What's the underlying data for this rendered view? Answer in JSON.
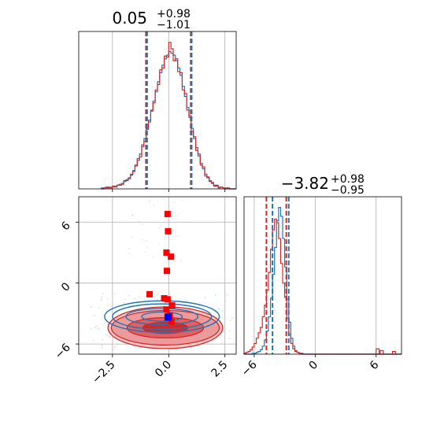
{
  "chart_data": [
    {
      "type": "histogram",
      "panel": "top-left",
      "title": {
        "value": "0.05",
        "upper": "+0.98",
        "lower": "−1.01"
      },
      "xlim": [
        -4.0,
        3.0
      ],
      "grid": true,
      "bins": [
        -3.0,
        -2.9,
        -2.8,
        -2.7,
        -2.6,
        -2.5,
        -2.4,
        -2.3,
        -2.2,
        -2.1,
        -2.0,
        -1.9,
        -1.8,
        -1.7,
        -1.6,
        -1.5,
        -1.4,
        -1.3,
        -1.2,
        -1.1,
        -1.0,
        -0.9,
        -0.8,
        -0.7,
        -0.6,
        -0.5,
        -0.4,
        -0.3,
        -0.2,
        -0.1,
        0.0,
        0.1,
        0.2,
        0.3,
        0.4,
        0.5,
        0.6,
        0.7,
        0.8,
        0.9,
        1.0,
        1.1,
        1.2,
        1.3,
        1.4,
        1.5,
        1.6,
        1.7,
        1.8,
        1.9,
        2.0,
        2.1,
        2.2,
        2.3,
        2.4,
        2.5,
        2.6,
        2.7,
        2.8,
        2.9
      ],
      "series": [
        {
          "color": "#1f77b4",
          "values": [
            1,
            1,
            1,
            2,
            2,
            2,
            3,
            4,
            4,
            6,
            8,
            10,
            12,
            15,
            20,
            26,
            31,
            38,
            46,
            55,
            65,
            75,
            85,
            96,
            106,
            117,
            127,
            135,
            142,
            146,
            150,
            148,
            146,
            140,
            132,
            124,
            112,
            101,
            89,
            78,
            66,
            55,
            45,
            36,
            28,
            22,
            16,
            12,
            9,
            6,
            4,
            3,
            2,
            2,
            1,
            1,
            1,
            0,
            0,
            0
          ]
        },
        {
          "color": "#d62728",
          "values": [
            0,
            1,
            2,
            1,
            1,
            3,
            2,
            4,
            5,
            5,
            9,
            9,
            11,
            16,
            19,
            25,
            33,
            35,
            48,
            52,
            66,
            73,
            86,
            94,
            108,
            114,
            130,
            132,
            145,
            144,
            160,
            153,
            140,
            142,
            128,
            127,
            108,
            104,
            86,
            80,
            63,
            57,
            42,
            38,
            26,
            24,
            14,
            13,
            8,
            7,
            3,
            4,
            1,
            2,
            1,
            0,
            1,
            0,
            0,
            0
          ]
        }
      ],
      "quantile_lines": [
        {
          "x": -1.01,
          "color": "#d62728"
        },
        {
          "x": 0.98,
          "color": "#d62728"
        },
        {
          "x": -0.96,
          "color": "#1f77b4"
        },
        {
          "x": 1.02,
          "color": "#1f77b4"
        }
      ]
    },
    {
      "type": "contour",
      "panel": "bottom-left",
      "xlim": [
        -4.0,
        3.0
      ],
      "ylim": [
        -7.0,
        8.5
      ],
      "xticks": [
        "−2.5",
        "0.0",
        "2.5"
      ],
      "yticks": [
        "−6",
        "0",
        "6"
      ],
      "grid": true,
      "blue_contours": {
        "color": "#1f77b4",
        "center": [
          -0.3,
          -3.3
        ],
        "levels": [
          {
            "rx": 0.9,
            "ry": 0.45
          },
          {
            "rx": 1.6,
            "ry": 0.8
          },
          {
            "rx": 2.2,
            "ry": 1.25
          },
          {
            "rx": 2.55,
            "ry": 1.55
          }
        ]
      },
      "red_contours": {
        "color": "#d62728",
        "center": [
          -0.15,
          -4.4
        ],
        "levels": [
          {
            "rx": 1.0,
            "ry": 0.55
          },
          {
            "rx": 1.7,
            "ry": 1.0
          },
          {
            "rx": 2.4,
            "ry": 1.7
          },
          {
            "rx": 2.55,
            "ry": 2.05
          }
        ]
      },
      "red_points": [
        [
          -0.05,
          6.8
        ],
        [
          -0.03,
          5.1
        ],
        [
          -0.1,
          3.0
        ],
        [
          0.1,
          2.6
        ],
        [
          -0.08,
          1.2
        ],
        [
          -0.85,
          -1.1
        ],
        [
          -0.2,
          -1.5
        ],
        [
          -0.05,
          -1.6
        ],
        [
          0.15,
          -2.2
        ],
        [
          -0.1,
          -2.6
        ],
        [
          0.05,
          -3.2
        ],
        [
          0.12,
          -3.8
        ]
      ],
      "blue_point": [
        -0.03,
        -3.35
      ]
    },
    {
      "type": "histogram",
      "panel": "bottom-right",
      "title": {
        "value": "−3.82",
        "upper": "+0.98",
        "lower": "−0.95"
      },
      "xlim": [
        -7.0,
        8.5
      ],
      "xticks": [
        "−6",
        "0",
        "6"
      ],
      "grid": true,
      "bins": [
        -7.0,
        -6.8,
        -6.6,
        -6.4,
        -6.2,
        -6.0,
        -5.8,
        -5.6,
        -5.4,
        -5.2,
        -5.0,
        -4.8,
        -4.6,
        -4.4,
        -4.2,
        -4.0,
        -3.8,
        -3.6,
        -3.4,
        -3.2,
        -3.0,
        -2.8,
        -2.6,
        -2.4,
        -2.2,
        -2.0,
        -1.8,
        -1.6,
        -1.4,
        -1.2,
        -1.0,
        -0.8,
        -0.6
      ],
      "series": [
        {
          "color": "#1f77b4",
          "values": [
            0,
            0,
            0,
            0,
            1,
            1,
            2,
            3,
            5,
            9,
            16,
            26,
            42,
            63,
            90,
            120,
            150,
            165,
            155,
            130,
            98,
            62,
            36,
            18,
            9,
            4,
            2,
            1,
            1,
            0,
            0,
            0,
            0
          ]
        },
        {
          "color": "#d62728",
          "values": [
            1,
            2,
            3,
            5,
            8,
            12,
            18,
            24,
            30,
            42,
            55,
            72,
            92,
            118,
            140,
            152,
            148,
            130,
            102,
            80,
            64,
            40,
            22,
            12,
            6,
            3,
            2,
            1,
            0,
            0,
            0,
            0,
            0
          ]
        }
      ],
      "outlier_bins": [
        {
          "x": 6.0,
          "color": "#d62728",
          "value": 6
        },
        {
          "x": 6.4,
          "color": "#d62728",
          "value": 4
        },
        {
          "x": 7.6,
          "color": "#d62728",
          "value": 3
        }
      ],
      "quantile_lines": [
        {
          "x": -4.8,
          "color": "#d62728"
        },
        {
          "x": -2.84,
          "color": "#d62728"
        },
        {
          "x": -4.2,
          "color": "#1f77b4"
        },
        {
          "x": -2.6,
          "color": "#1f77b4"
        }
      ]
    }
  ]
}
